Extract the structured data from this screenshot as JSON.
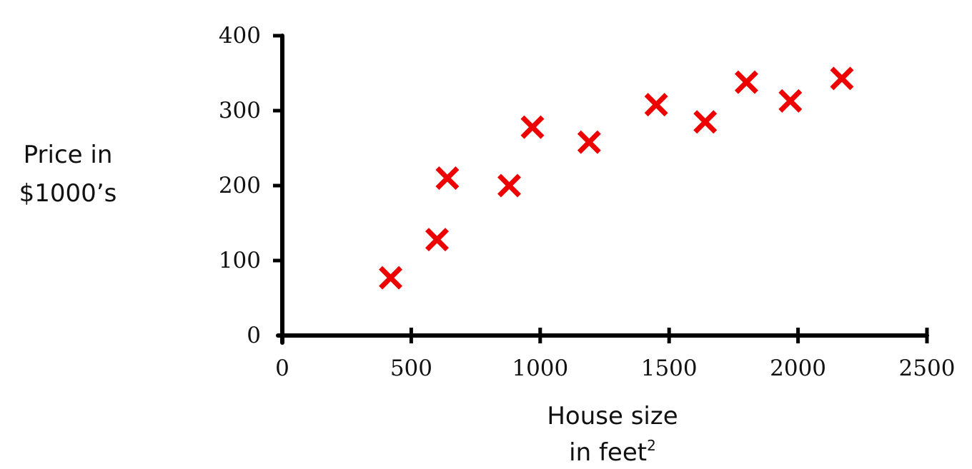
{
  "chart_data": {
    "type": "scatter",
    "title": "",
    "xlabel_lines": [
      "House size",
      "in feet"
    ],
    "xlabel_superscript": "2",
    "ylabel_lines": [
      "Price in",
      "$1000’s"
    ],
    "xlim": [
      0,
      2500
    ],
    "ylim": [
      0,
      400
    ],
    "xticks": [
      0,
      500,
      1000,
      1500,
      2000,
      2500
    ],
    "yticks": [
      0,
      100,
      200,
      300,
      400
    ],
    "xtick_labels": [
      "0",
      "500",
      "1000",
      "1500",
      "2000",
      "2500"
    ],
    "ytick_labels": [
      "0",
      "100",
      "200",
      "300",
      "400"
    ],
    "marker": "x",
    "marker_color": "#ee0000",
    "axis_color": "#000000",
    "grid": false,
    "points": [
      {
        "x": 420,
        "y": 77
      },
      {
        "x": 600,
        "y": 128
      },
      {
        "x": 640,
        "y": 210
      },
      {
        "x": 880,
        "y": 200
      },
      {
        "x": 970,
        "y": 278
      },
      {
        "x": 1190,
        "y": 258
      },
      {
        "x": 1450,
        "y": 308
      },
      {
        "x": 1640,
        "y": 285
      },
      {
        "x": 1800,
        "y": 338
      },
      {
        "x": 1970,
        "y": 313
      },
      {
        "x": 2170,
        "y": 343
      }
    ]
  }
}
